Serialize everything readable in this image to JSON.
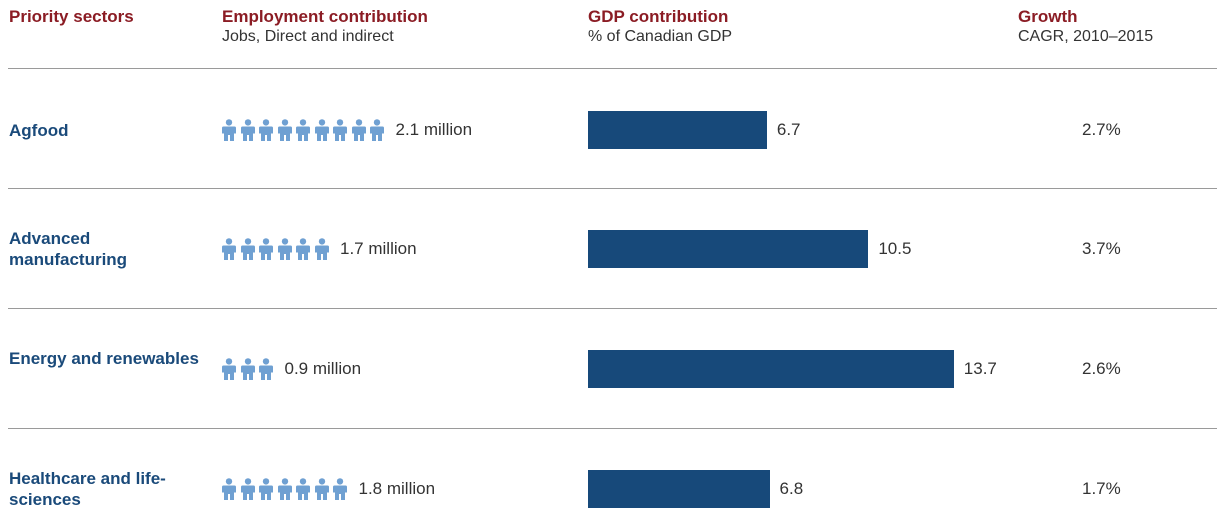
{
  "headers": {
    "sector": {
      "title": "Priority sectors"
    },
    "employment": {
      "title": "Employment contribution",
      "subtitle": "Jobs, Direct and indirect"
    },
    "gdp": {
      "title": "GDP contribution",
      "subtitle": "% of Canadian GDP"
    },
    "growth": {
      "title": "Growth",
      "subtitle": "CAGR, 2010–2015"
    }
  },
  "colors": {
    "header_red": "#8b1c24",
    "sector_blue": "#1a4a7a",
    "bar_blue": "#17497a",
    "person_icon": "#6fa0d2"
  },
  "icon": "person-icon",
  "chart_data": {
    "type": "bar",
    "categories": [
      "Agfood",
      "Advanced manufacturing",
      "Energy and renewables",
      "Healthcare and life-sciences"
    ],
    "rows": [
      {
        "sector": "Agfood",
        "employment_label": "2.1 million",
        "icon_count": 9,
        "gdp": 6.7,
        "gdp_label": "6.7",
        "growth": "2.7%"
      },
      {
        "sector": "Advanced manufacturing",
        "employment_label": "1.7 million",
        "icon_count": 6,
        "gdp": 10.5,
        "gdp_label": "10.5",
        "growth": "3.7%"
      },
      {
        "sector": "Energy and renewables",
        "employment_label": "0.9 million",
        "icon_count": 3,
        "gdp": 13.7,
        "gdp_label": "13.7",
        "growth": "2.6%"
      },
      {
        "sector": "Healthcare and life-sciences",
        "employment_label": "1.8 million",
        "icon_count": 7,
        "gdp": 6.8,
        "gdp_label": "6.8",
        "growth": "1.7%"
      }
    ]
  }
}
